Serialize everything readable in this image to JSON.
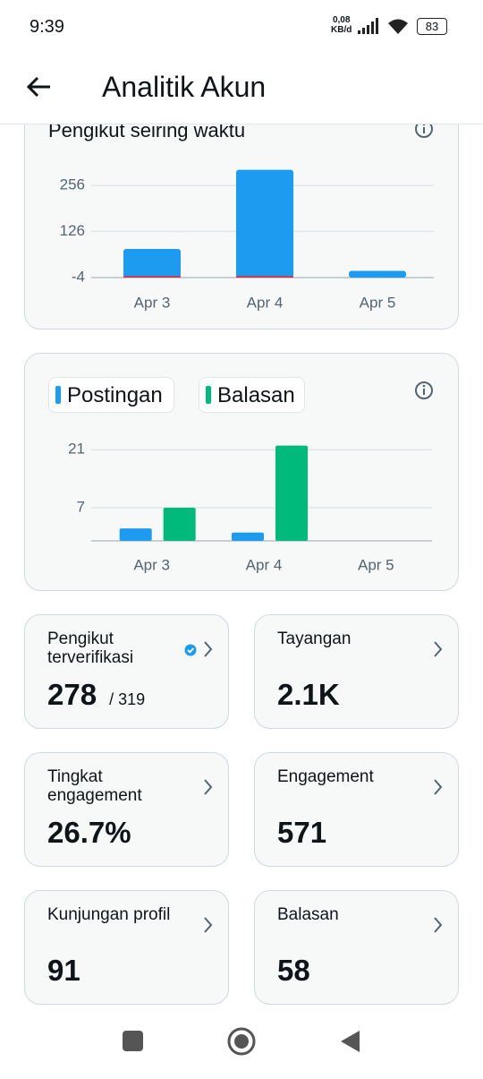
{
  "status_bar": {
    "time": "9:39",
    "network_speed": "0,08",
    "network_unit": "KB/d",
    "battery": "83"
  },
  "header": {
    "title": "Analitik Akun"
  },
  "followers_chart": {
    "type": "bar",
    "title": "Pengikut seiring waktu",
    "categories": [
      "Apr 3",
      "Apr 4",
      "Apr 5"
    ],
    "series": [
      {
        "color": "#1d9bf0",
        "values": [
          77,
          300,
          15
        ]
      },
      {
        "color": "#f4212e",
        "values": [
          -3,
          -4,
          null
        ]
      }
    ],
    "ylim": [
      -4,
      308
    ],
    "yticks": [
      -4,
      126,
      256
    ],
    "grid": true
  },
  "activity_chart": {
    "type": "bar",
    "categories": [
      "Apr 3",
      "Apr 4",
      "Apr 5"
    ],
    "series": [
      {
        "name": "Postingan",
        "color": "#1d9bf0",
        "values": [
          2,
          1,
          null
        ]
      },
      {
        "name": "Balasan",
        "color": "#00ba7c",
        "values": [
          7,
          22,
          null
        ]
      }
    ],
    "ylim": [
      -1,
      23
    ],
    "yticks": [
      7,
      21
    ],
    "grid": true
  },
  "metrics": [
    {
      "label": "Pengikut terverifikasi",
      "value": "278",
      "total": "/ 319"
    },
    {
      "label": "Tayangan",
      "value": "2.1K"
    },
    {
      "label": "Tingkat engagement",
      "value": "26.7%"
    },
    {
      "label": "Engagement",
      "value": "571"
    },
    {
      "label": "Kunjungan profil",
      "value": "91"
    },
    {
      "label": "Balasan",
      "value": "58"
    }
  ]
}
